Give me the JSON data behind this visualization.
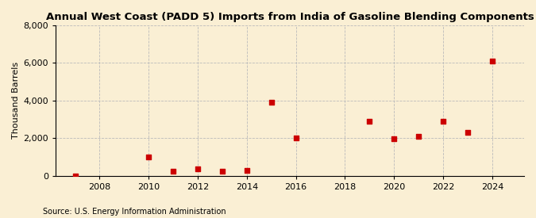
{
  "title": "Annual West Coast (PADD 5) Imports from India of Gasoline Blending Components",
  "ylabel": "Thousand Barrels",
  "source": "Source: U.S. Energy Information Administration",
  "background_color": "#faefd4",
  "data": [
    {
      "year": 2007,
      "value": 5
    },
    {
      "year": 2010,
      "value": 1000
    },
    {
      "year": 2011,
      "value": 250
    },
    {
      "year": 2012,
      "value": 350
    },
    {
      "year": 2013,
      "value": 250
    },
    {
      "year": 2014,
      "value": 280
    },
    {
      "year": 2015,
      "value": 3900
    },
    {
      "year": 2016,
      "value": 2000
    },
    {
      "year": 2019,
      "value": 2880
    },
    {
      "year": 2020,
      "value": 1950
    },
    {
      "year": 2021,
      "value": 2100
    },
    {
      "year": 2022,
      "value": 2880
    },
    {
      "year": 2023,
      "value": 2300
    },
    {
      "year": 2024,
      "value": 6100
    }
  ],
  "marker_color": "#cc0000",
  "marker_size": 25,
  "xlim": [
    2006.2,
    2025.3
  ],
  "ylim": [
    0,
    8000
  ],
  "yticks": [
    0,
    2000,
    4000,
    6000,
    8000
  ],
  "xticks": [
    2008,
    2010,
    2012,
    2014,
    2016,
    2018,
    2020,
    2022,
    2024
  ],
  "grid_color": "#bbbbbb",
  "title_fontsize": 9.5,
  "tick_fontsize": 8,
  "ylabel_fontsize": 8,
  "source_fontsize": 7
}
